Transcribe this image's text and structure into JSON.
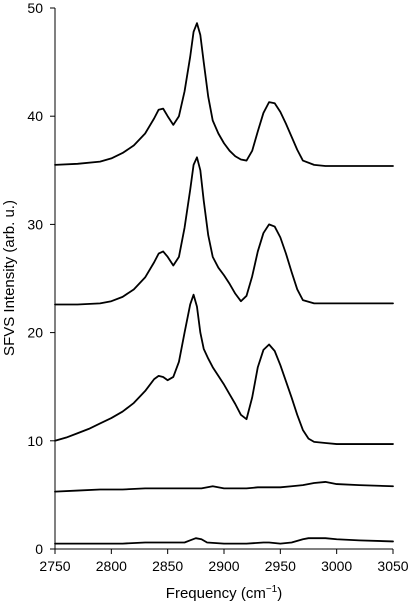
{
  "chart_data": {
    "type": "line",
    "xlabel": "Frequency (cm",
    "xlabel_sup": "−1",
    "xlabel_end": ")",
    "ylabel": "SFVS Intensity (arb. u.)",
    "xlim": [
      2750,
      3050
    ],
    "ylim": [
      0,
      50
    ],
    "xticks": [
      2750,
      2800,
      2850,
      2900,
      2950,
      3000,
      3050
    ],
    "yticks": [
      0,
      10,
      20,
      30,
      40,
      50
    ],
    "grid": false,
    "series": [
      {
        "x": [
          2750,
          2770,
          2790,
          2800,
          2810,
          2820,
          2830,
          2838,
          2842,
          2846,
          2850,
          2855,
          2860,
          2865,
          2870,
          2873,
          2876,
          2879,
          2882,
          2886,
          2890,
          2895,
          2900,
          2905,
          2910,
          2915,
          2920,
          2925,
          2930,
          2935,
          2940,
          2945,
          2950,
          2955,
          2960,
          2965,
          2970,
          2980,
          2990,
          3000,
          3020,
          3050
        ],
        "y": [
          35.5,
          35.6,
          35.8,
          36.1,
          36.6,
          37.3,
          38.4,
          39.8,
          40.6,
          40.7,
          40.0,
          39.2,
          40.0,
          42.3,
          45.5,
          47.8,
          48.6,
          47.5,
          45.0,
          41.8,
          39.6,
          38.4,
          37.5,
          36.8,
          36.3,
          36.0,
          35.9,
          36.8,
          38.6,
          40.3,
          41.3,
          41.2,
          40.4,
          39.3,
          38.1,
          36.9,
          35.9,
          35.5,
          35.4,
          35.4,
          35.4,
          35.4
        ]
      },
      {
        "x": [
          2750,
          2770,
          2790,
          2800,
          2810,
          2820,
          2830,
          2838,
          2842,
          2846,
          2850,
          2855,
          2860,
          2865,
          2870,
          2873,
          2876,
          2879,
          2882,
          2886,
          2890,
          2895,
          2900,
          2905,
          2910,
          2915,
          2920,
          2925,
          2930,
          2935,
          2940,
          2945,
          2950,
          2955,
          2960,
          2965,
          2970,
          2980,
          2990,
          3000,
          3020,
          3050
        ],
        "y": [
          22.6,
          22.6,
          22.7,
          22.9,
          23.3,
          24.0,
          25.1,
          26.5,
          27.3,
          27.5,
          27.0,
          26.2,
          27.0,
          29.7,
          33.2,
          35.5,
          36.2,
          35.0,
          32.2,
          29.0,
          27.0,
          26.0,
          25.3,
          24.5,
          23.6,
          22.9,
          23.4,
          25.2,
          27.5,
          29.2,
          30.0,
          29.8,
          28.8,
          27.3,
          25.6,
          24.0,
          23.0,
          22.7,
          22.7,
          22.7,
          22.7,
          22.7
        ]
      },
      {
        "x": [
          2750,
          2760,
          2770,
          2780,
          2790,
          2800,
          2810,
          2820,
          2830,
          2838,
          2842,
          2846,
          2850,
          2855,
          2860,
          2865,
          2870,
          2873,
          2876,
          2879,
          2882,
          2886,
          2890,
          2895,
          2900,
          2905,
          2910,
          2915,
          2920,
          2925,
          2930,
          2935,
          2940,
          2945,
          2950,
          2955,
          2960,
          2965,
          2970,
          2975,
          2980,
          2990,
          3000,
          3020,
          3050
        ],
        "y": [
          10.0,
          10.3,
          10.7,
          11.1,
          11.6,
          12.1,
          12.7,
          13.5,
          14.6,
          15.7,
          16.0,
          15.9,
          15.6,
          15.9,
          17.3,
          20.0,
          22.6,
          23.5,
          22.4,
          20.0,
          18.5,
          17.6,
          16.8,
          16.0,
          15.2,
          14.3,
          13.4,
          12.4,
          12.0,
          14.0,
          16.8,
          18.4,
          18.9,
          18.3,
          17.0,
          15.5,
          14.0,
          12.4,
          11.0,
          10.2,
          9.9,
          9.8,
          9.7,
          9.7,
          9.7
        ]
      },
      {
        "x": [
          2750,
          2770,
          2790,
          2810,
          2830,
          2850,
          2870,
          2880,
          2890,
          2900,
          2910,
          2920,
          2930,
          2940,
          2950,
          2960,
          2970,
          2980,
          2990,
          3000,
          3020,
          3050
        ],
        "y": [
          5.3,
          5.4,
          5.5,
          5.5,
          5.6,
          5.6,
          5.6,
          5.6,
          5.8,
          5.6,
          5.6,
          5.6,
          5.7,
          5.7,
          5.7,
          5.8,
          5.9,
          6.1,
          6.2,
          6.0,
          5.9,
          5.8
        ]
      },
      {
        "x": [
          2750,
          2770,
          2790,
          2810,
          2830,
          2850,
          2865,
          2870,
          2875,
          2880,
          2885,
          2900,
          2920,
          2935,
          2940,
          2950,
          2960,
          2970,
          2975,
          2980,
          2990,
          3000,
          3020,
          3050
        ],
        "y": [
          0.5,
          0.5,
          0.5,
          0.5,
          0.6,
          0.6,
          0.6,
          0.8,
          1.0,
          0.9,
          0.6,
          0.5,
          0.5,
          0.6,
          0.6,
          0.5,
          0.6,
          0.9,
          1.0,
          1.0,
          1.0,
          0.9,
          0.8,
          0.7
        ]
      }
    ]
  }
}
